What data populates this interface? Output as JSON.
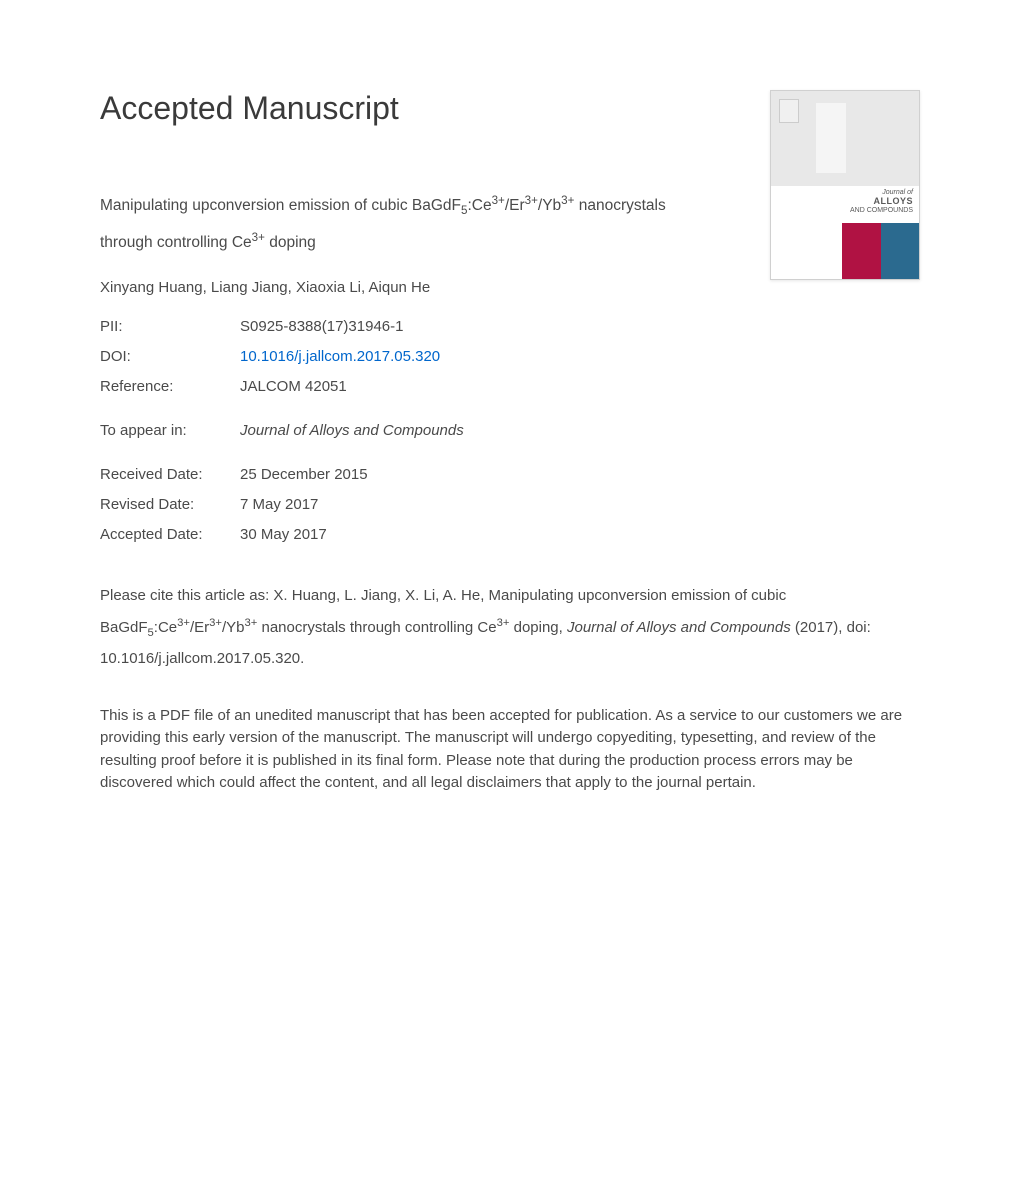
{
  "page": {
    "heading": "Accepted Manuscript",
    "title_html": "Manipulating upconversion emission of cubic BaGdF<sub>5</sub>:Ce<sup>3+</sup>/Er<sup>3+</sup>/Yb<sup>3+</sup> nanocrystals through controlling Ce<sup>3+</sup> doping",
    "authors": "Xinyang Huang, Liang Jiang, Xiaoxia Li, Aiqun He",
    "meta": {
      "pii_label": "PII:",
      "pii": "S0925-8388(17)31946-1",
      "doi_label": "DOI:",
      "doi": "10.1016/j.jallcom.2017.05.320",
      "ref_label": "Reference:",
      "ref": "JALCOM 42051",
      "appear_label": "To appear in:",
      "appear": "Journal of Alloys and Compounds",
      "received_label": "Received Date:",
      "received": "25 December 2015",
      "revised_label": "Revised Date:",
      "revised": "7 May 2017",
      "accepted_label": "Accepted Date:",
      "accepted": "30 May 2017"
    },
    "citation_html": "Please cite this article as: X. Huang, L. Jiang, X. Li, A. He, Manipulating upconversion emission of cubic BaGdF<sub>5</sub>:Ce<sup>3+</sup>/Er<sup>3+</sup>/Yb<sup>3+</sup> nanocrystals through controlling Ce<sup>3+</sup> doping, <span class=\"italic\">Journal of Alloys and Compounds</span> (2017), doi: 10.1016/j.jallcom.2017.05.320.",
    "disclaimer": "This is a PDF file of an unedited manuscript that has been accepted for publication. As a service to our customers we are providing this early version of the manuscript. The manuscript will undergo copyediting, typesetting, and review of the resulting proof before it is published in its final form. Please note that during the production process errors may be discovered which could affect the content, and all legal disclaimers that apply to the journal pertain."
  },
  "cover": {
    "journal_of": "Journal of",
    "title_line1": "ALLOYS",
    "title_line2": "AND COMPOUNDS",
    "colors": {
      "magenta": "#b01243",
      "teal": "#2b6a8f",
      "gray": "#e8e8e8"
    }
  },
  "styling": {
    "page_bg": "#ffffff",
    "text_color": "#4a4a4a",
    "heading_color": "#3a3a3a",
    "link_color": "#0066cc",
    "heading_fontsize": 32,
    "body_fontsize": 15,
    "title_fontsize": 15.5
  }
}
